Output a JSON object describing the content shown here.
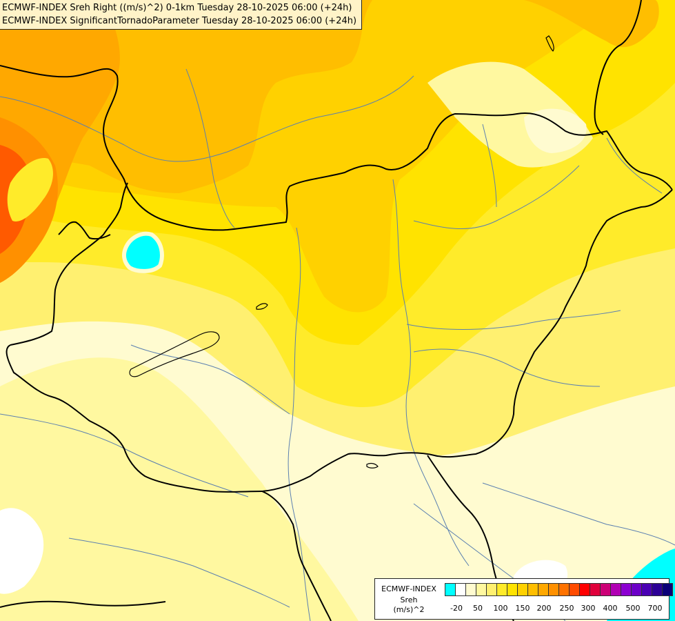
{
  "header": {
    "line1": "ECMWF-INDEX Sreh Right ((m/s)^2) 0-1km Tuesday 28-10-2025 06:00 (+24h)",
    "line2": "ECMWF-INDEX SignificantTornadoParameter Tuesday 28-10-2025 06:00 (+24h)"
  },
  "legend": {
    "title1": "ECMWF-INDEX",
    "title2": "Sreh",
    "title3": "(m/s)^2",
    "colors": [
      "#00ffff",
      "#ffffff",
      "#fffbd0",
      "#fff8a0",
      "#fff070",
      "#ffeb2a",
      "#ffe300",
      "#ffd100",
      "#ffbe00",
      "#ffa800",
      "#ff9000",
      "#ff7200",
      "#ff4b00",
      "#ff0000",
      "#e0003c",
      "#cc0077",
      "#b000b4",
      "#8c00d2",
      "#6c00c8",
      "#4a00b4",
      "#2c0096",
      "#0a0078"
    ],
    "ticks": [
      "-20",
      "50",
      "100",
      "150",
      "200",
      "250",
      "300",
      "400",
      "500",
      "700"
    ]
  }
}
